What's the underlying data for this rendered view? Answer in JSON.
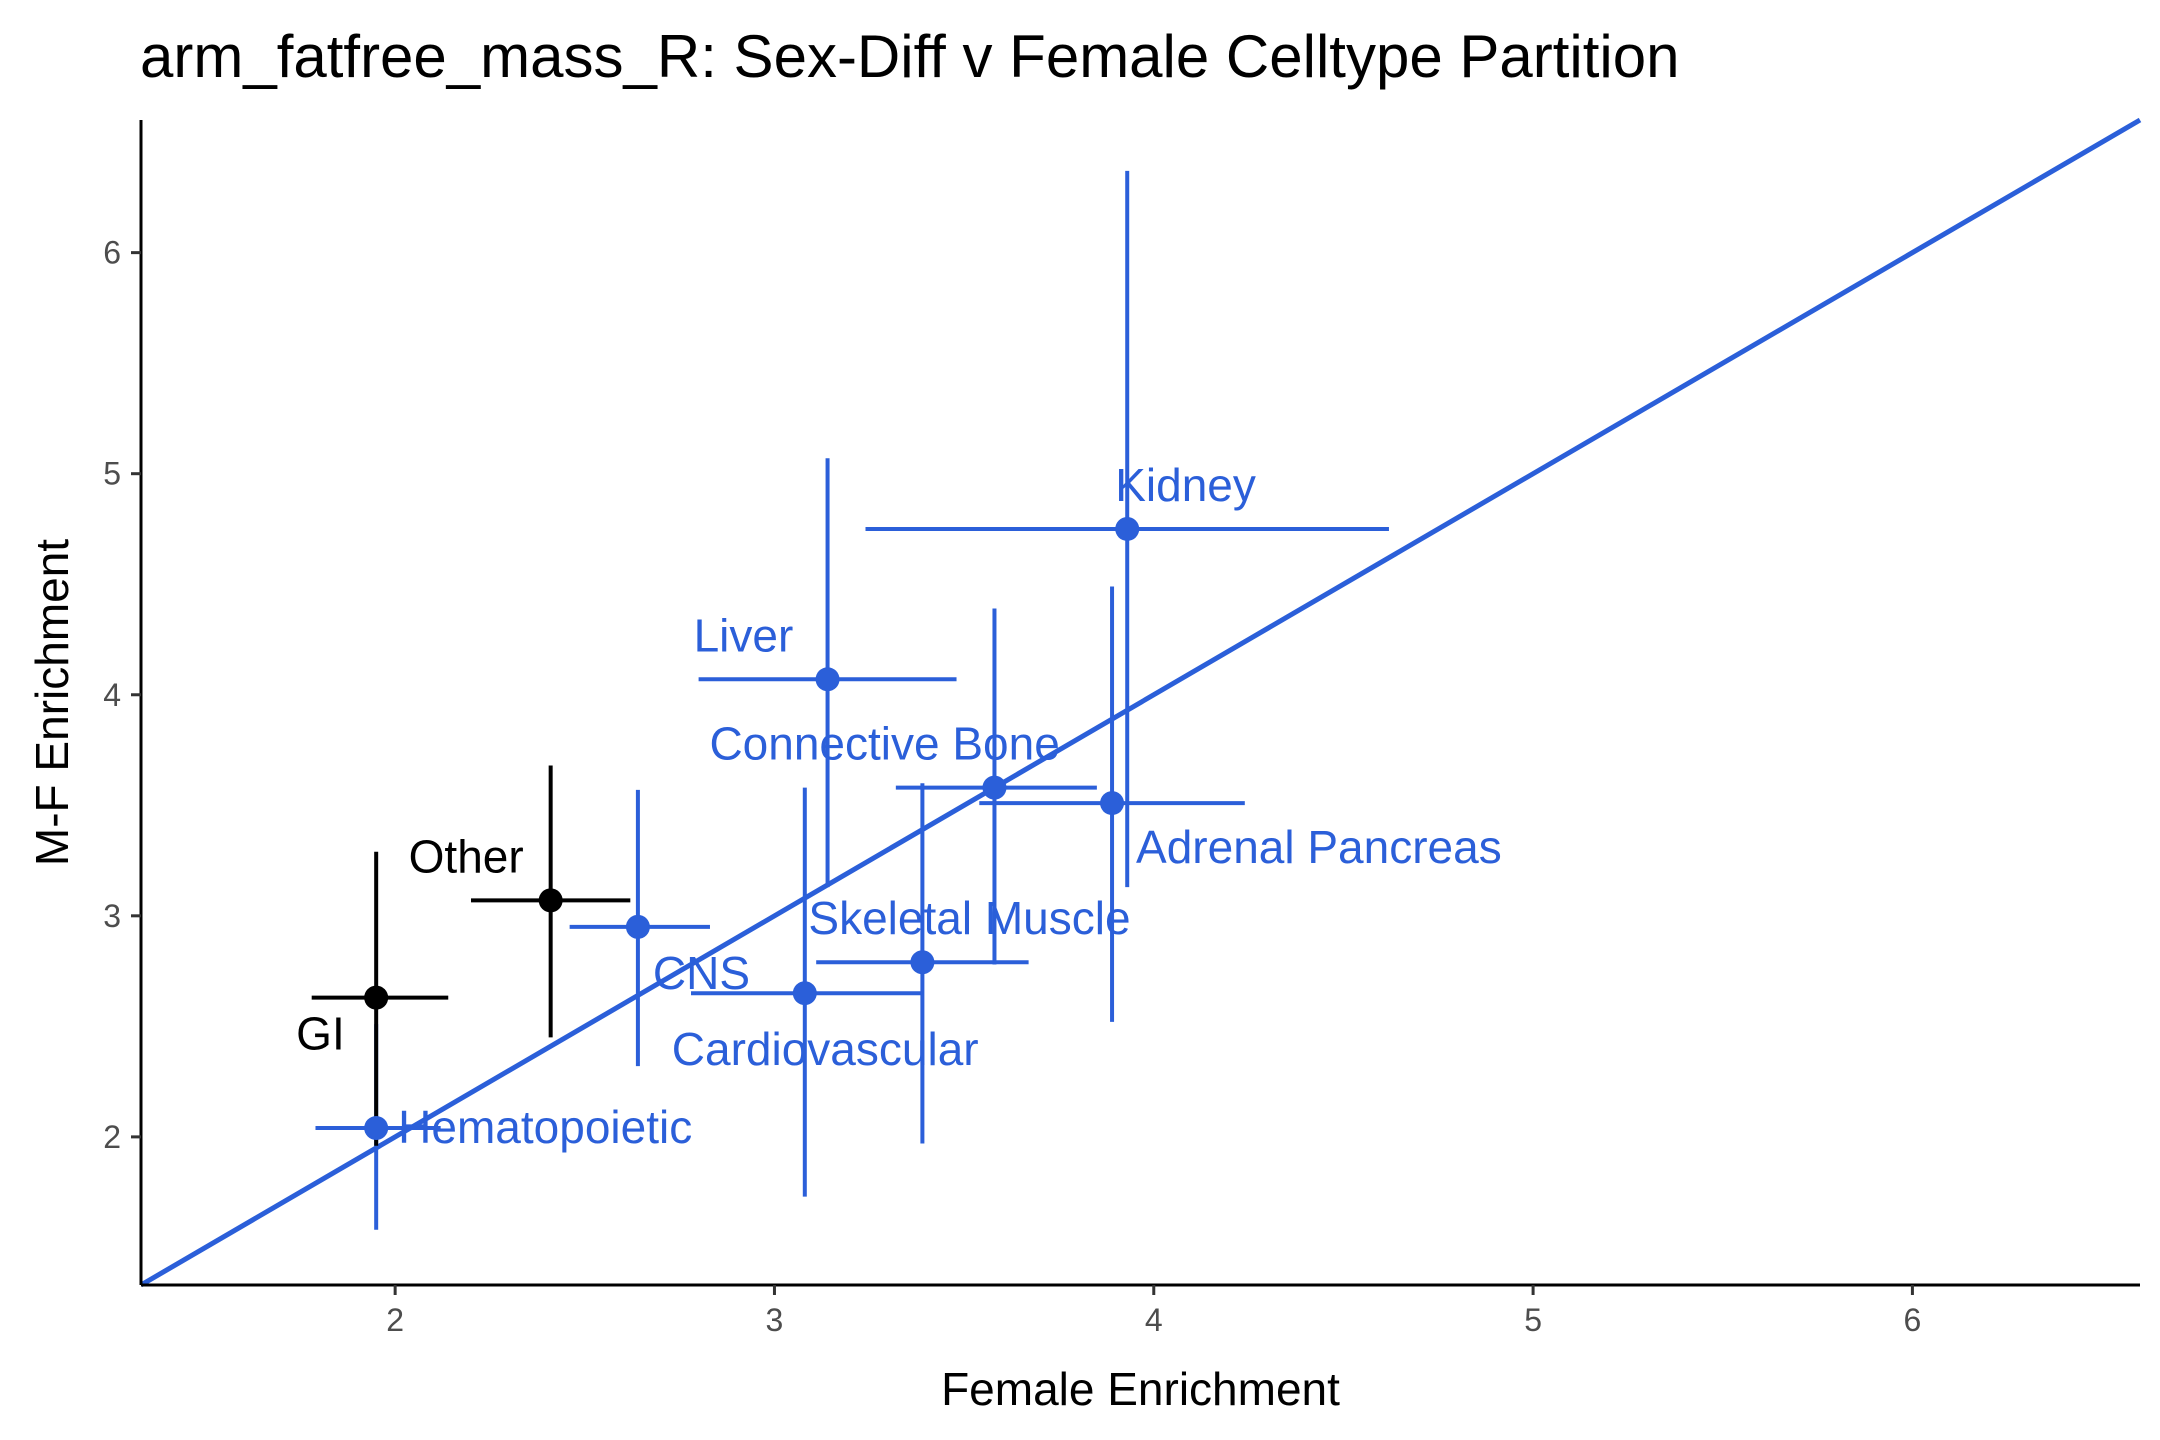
{
  "chart_data": {
    "type": "scatter",
    "title": "arm_fatfree_mass_R: Sex-Diff v Female Celltype Partition",
    "xlabel": "Female Enrichment",
    "ylabel": "M-F Enrichment",
    "xlim": [
      1.33,
      6.6
    ],
    "ylim": [
      1.33,
      6.6
    ],
    "x_ticks": [
      2,
      3,
      4,
      5,
      6
    ],
    "y_ticks": [
      2,
      3,
      4,
      5,
      6
    ],
    "grid": false,
    "reference_line": {
      "slope": 1,
      "intercept": 0,
      "color": "#2b5fd9"
    },
    "colors": {
      "highlighted": "#2b5fd9",
      "other": "#000000"
    },
    "points": [
      {
        "label": "Kidney",
        "x": 3.93,
        "y": 4.75,
        "xmin": 3.24,
        "xmax": 4.62,
        "ymin": 3.13,
        "ymax": 6.37,
        "group": "highlighted"
      },
      {
        "label": "Liver",
        "x": 3.14,
        "y": 4.07,
        "xmin": 2.8,
        "xmax": 3.48,
        "ymin": 3.13,
        "ymax": 5.07,
        "group": "highlighted"
      },
      {
        "label": "Connective Bone",
        "x": 3.58,
        "y": 3.58,
        "xmin": 3.32,
        "xmax": 3.85,
        "ymin": 2.78,
        "ymax": 4.39,
        "group": "highlighted"
      },
      {
        "label": "Adrenal Pancreas",
        "x": 3.89,
        "y": 3.51,
        "xmin": 3.54,
        "xmax": 4.24,
        "ymin": 2.52,
        "ymax": 4.49,
        "group": "highlighted"
      },
      {
        "label": "Skeletal Muscle",
        "x": 3.39,
        "y": 2.79,
        "xmin": 3.11,
        "xmax": 3.67,
        "ymin": 1.97,
        "ymax": 3.6,
        "group": "highlighted"
      },
      {
        "label": "CNS",
        "x": 2.64,
        "y": 2.95,
        "xmin": 2.46,
        "xmax": 2.83,
        "ymin": 2.32,
        "ymax": 3.57,
        "group": "highlighted"
      },
      {
        "label": "Cardiovascular",
        "x": 3.08,
        "y": 2.65,
        "xmin": 2.78,
        "xmax": 3.39,
        "ymin": 1.73,
        "ymax": 3.58,
        "group": "highlighted"
      },
      {
        "label": "Hematopoietic",
        "x": 1.95,
        "y": 2.04,
        "xmin": 1.79,
        "xmax": 2.12,
        "ymin": 1.58,
        "ymax": 2.51,
        "group": "highlighted"
      },
      {
        "label": "Other",
        "x": 2.41,
        "y": 3.07,
        "xmin": 2.2,
        "xmax": 2.62,
        "ymin": 2.45,
        "ymax": 3.68,
        "group": "other"
      },
      {
        "label": "GI",
        "x": 1.95,
        "y": 2.63,
        "xmin": 1.78,
        "xmax": 2.14,
        "ymin": 1.96,
        "ymax": 3.29,
        "group": "other"
      }
    ]
  }
}
